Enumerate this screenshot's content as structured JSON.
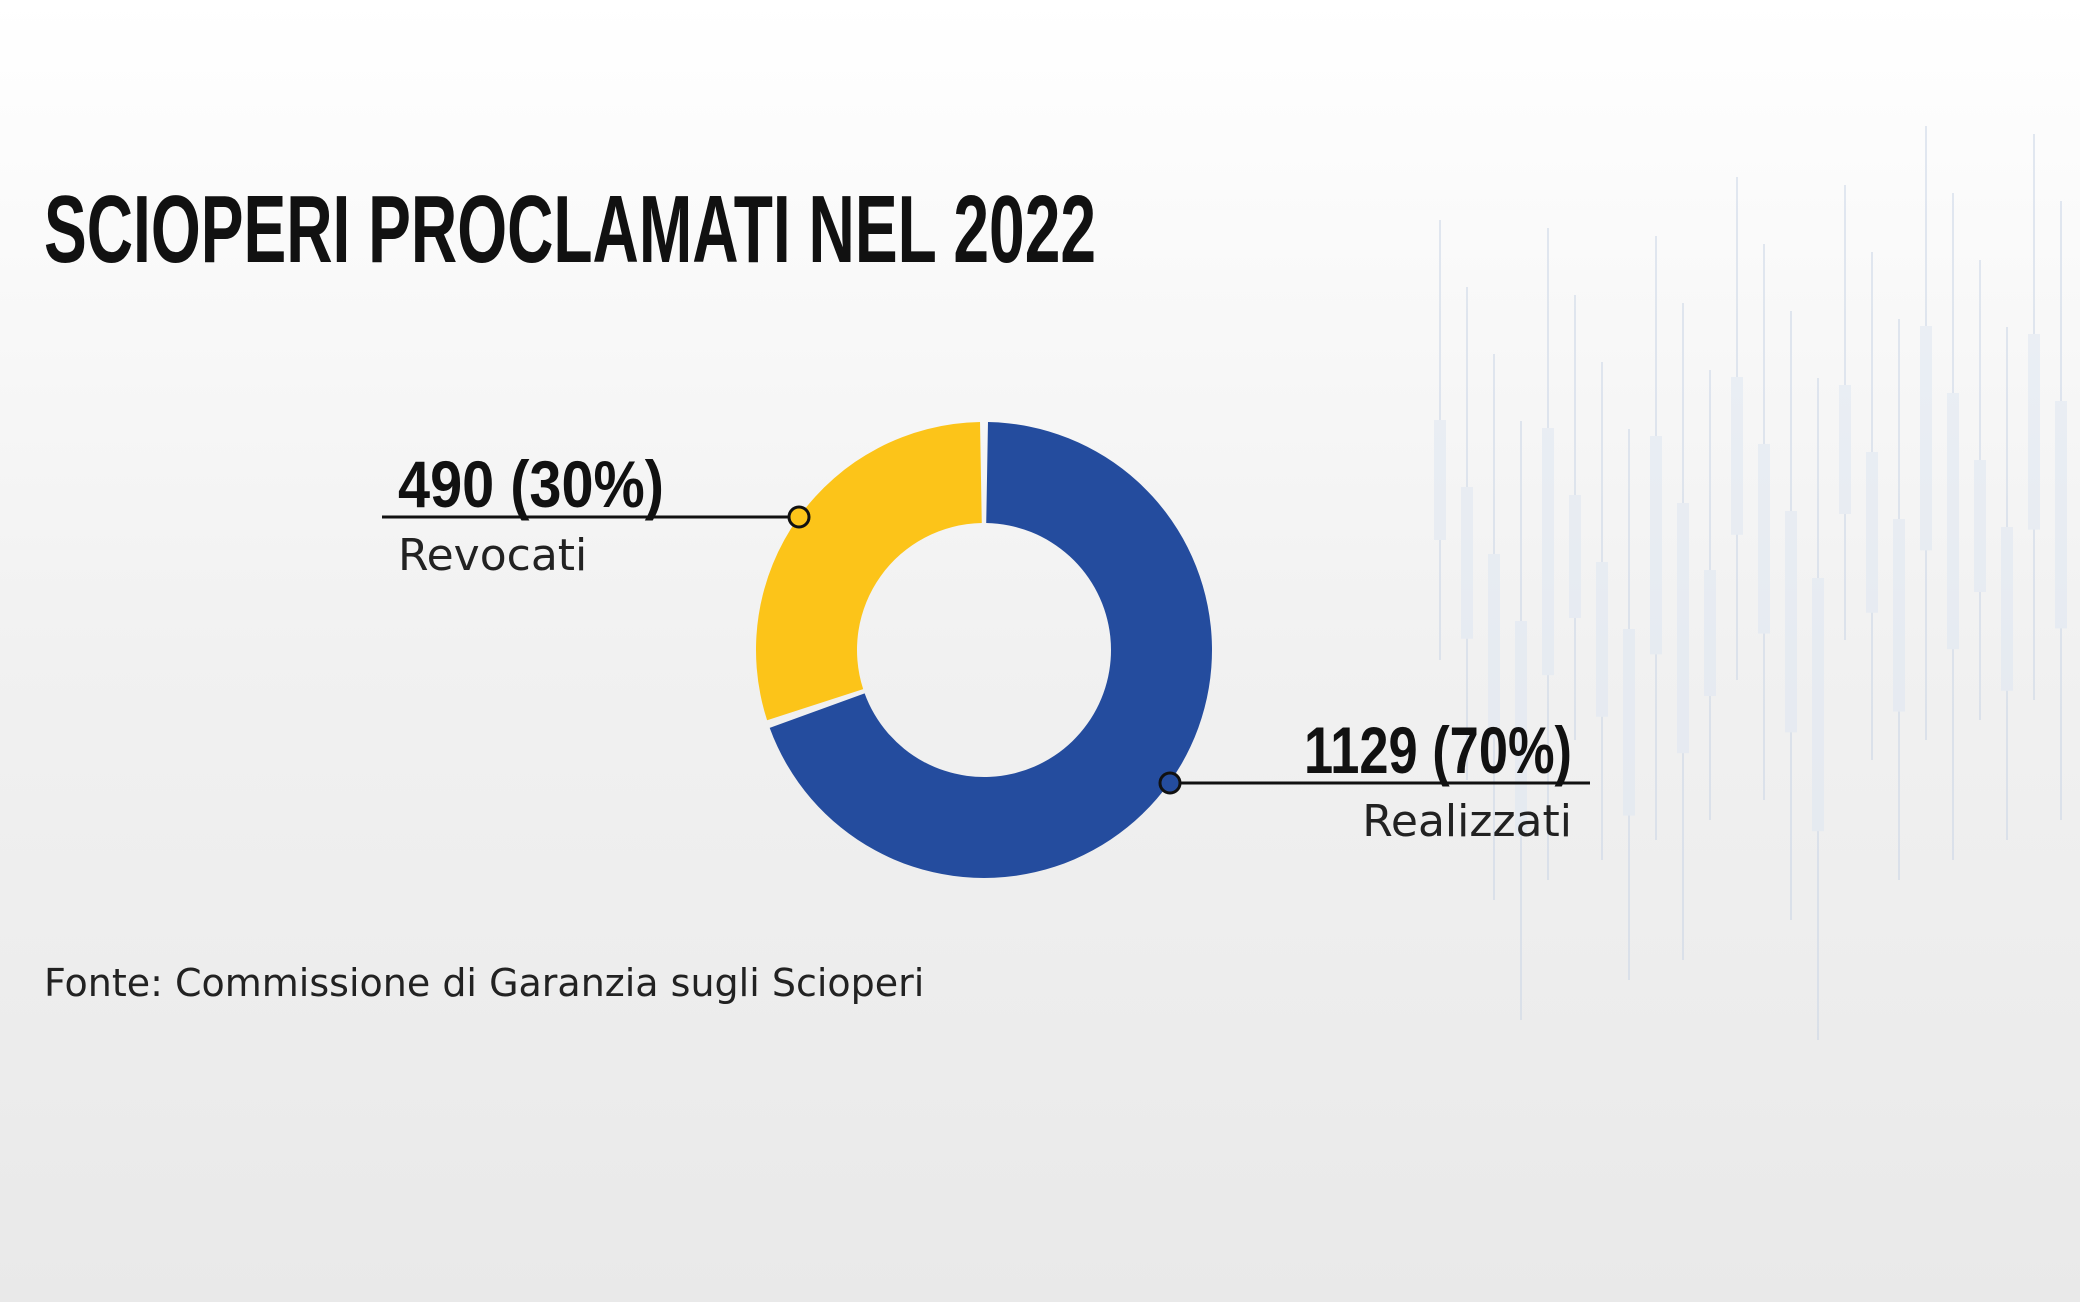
{
  "chart_data": {
    "type": "pie",
    "variant": "donut",
    "title": "SCIOPERI PROCLAMATI NEL 2022",
    "source": "Fonte: Commissione di Garanzia sugli Scioperi",
    "slices": [
      {
        "label": "Revocati",
        "value": 490,
        "percent": 30,
        "value_label": "490 (30%)",
        "color": "#fcc419"
      },
      {
        "label": "Realizzati",
        "value": 1129,
        "percent": 70,
        "value_label": "1129 (70%)",
        "color": "#244c9e"
      }
    ]
  },
  "colors": {
    "background": "#f2f2f2",
    "text": "#111111"
  }
}
